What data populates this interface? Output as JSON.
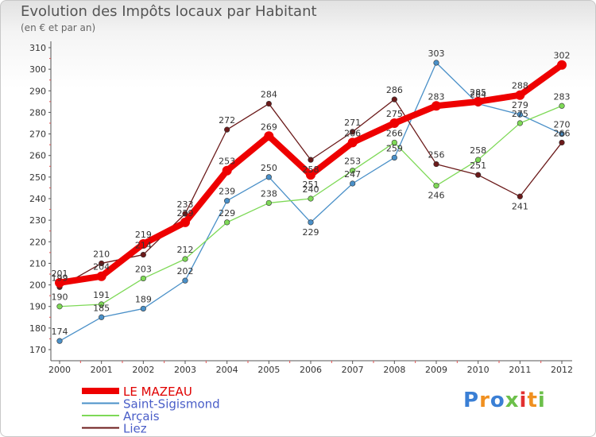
{
  "chart_data": {
    "type": "line",
    "title": "Evolution des Impôts locaux par Habitant",
    "subtitle": "(en € et par an)",
    "xlabel": "",
    "ylabel": "",
    "x": [
      "2000",
      "2001",
      "2002",
      "2003",
      "2004",
      "2005",
      "2006",
      "2007",
      "2008",
      "2009",
      "2010",
      "2011",
      "2012"
    ],
    "yticks": [
      "170",
      "180",
      "190",
      "200",
      "210",
      "220",
      "230",
      "240",
      "250",
      "260",
      "270",
      "280",
      "290",
      "300",
      "310"
    ],
    "ylim": [
      170,
      310
    ],
    "grid": false,
    "legend_position": "bottom-left",
    "series": [
      {
        "name": "LE MAZEAU",
        "color": "#ee0000",
        "values": [
          201,
          204,
          219,
          229,
          253,
          269,
          251,
          266,
          275,
          283,
          285,
          288,
          302
        ],
        "labels": [
          "201",
          "204",
          "219",
          "229",
          "253",
          "269",
          "251",
          "266",
          "275",
          "283",
          "285",
          "288",
          "302"
        ]
      },
      {
        "name": "Saint-Sigismond",
        "color": "#4a90c8",
        "values": [
          174,
          185,
          189,
          202,
          239,
          250,
          229,
          247,
          259,
          303,
          284,
          279,
          270
        ],
        "labels": [
          "174",
          "185",
          "189",
          "202",
          "239",
          "250",
          "229",
          "247",
          "259",
          "303",
          "284",
          "279",
          "270"
        ]
      },
      {
        "name": "Arçais",
        "color": "#7ed957",
        "values": [
          190,
          191,
          203,
          212,
          229,
          238,
          240,
          253,
          266,
          246,
          258,
          275,
          283
        ],
        "labels": [
          "190",
          "191",
          "203",
          "212",
          "229",
          "238",
          "240",
          "253",
          "266",
          "246",
          "258",
          "275",
          "283"
        ]
      },
      {
        "name": "Liez",
        "color": "#6b1a1a",
        "values": [
          199,
          210,
          214,
          233,
          272,
          284,
          258,
          271,
          286,
          256,
          251,
          241,
          266
        ],
        "labels": [
          "199",
          "210",
          "214",
          "233",
          "272",
          "284",
          "258",
          "271",
          "286",
          "256",
          "251",
          "241",
          "266"
        ]
      }
    ]
  },
  "brand": {
    "letters": [
      "P",
      "r",
      "o",
      "x",
      "i",
      "t",
      "i"
    ],
    "colors": [
      "#3a7fd5",
      "#f09020",
      "#3a7fd5",
      "#6cc04a",
      "#e23030",
      "#f09020",
      "#6cc04a"
    ]
  }
}
